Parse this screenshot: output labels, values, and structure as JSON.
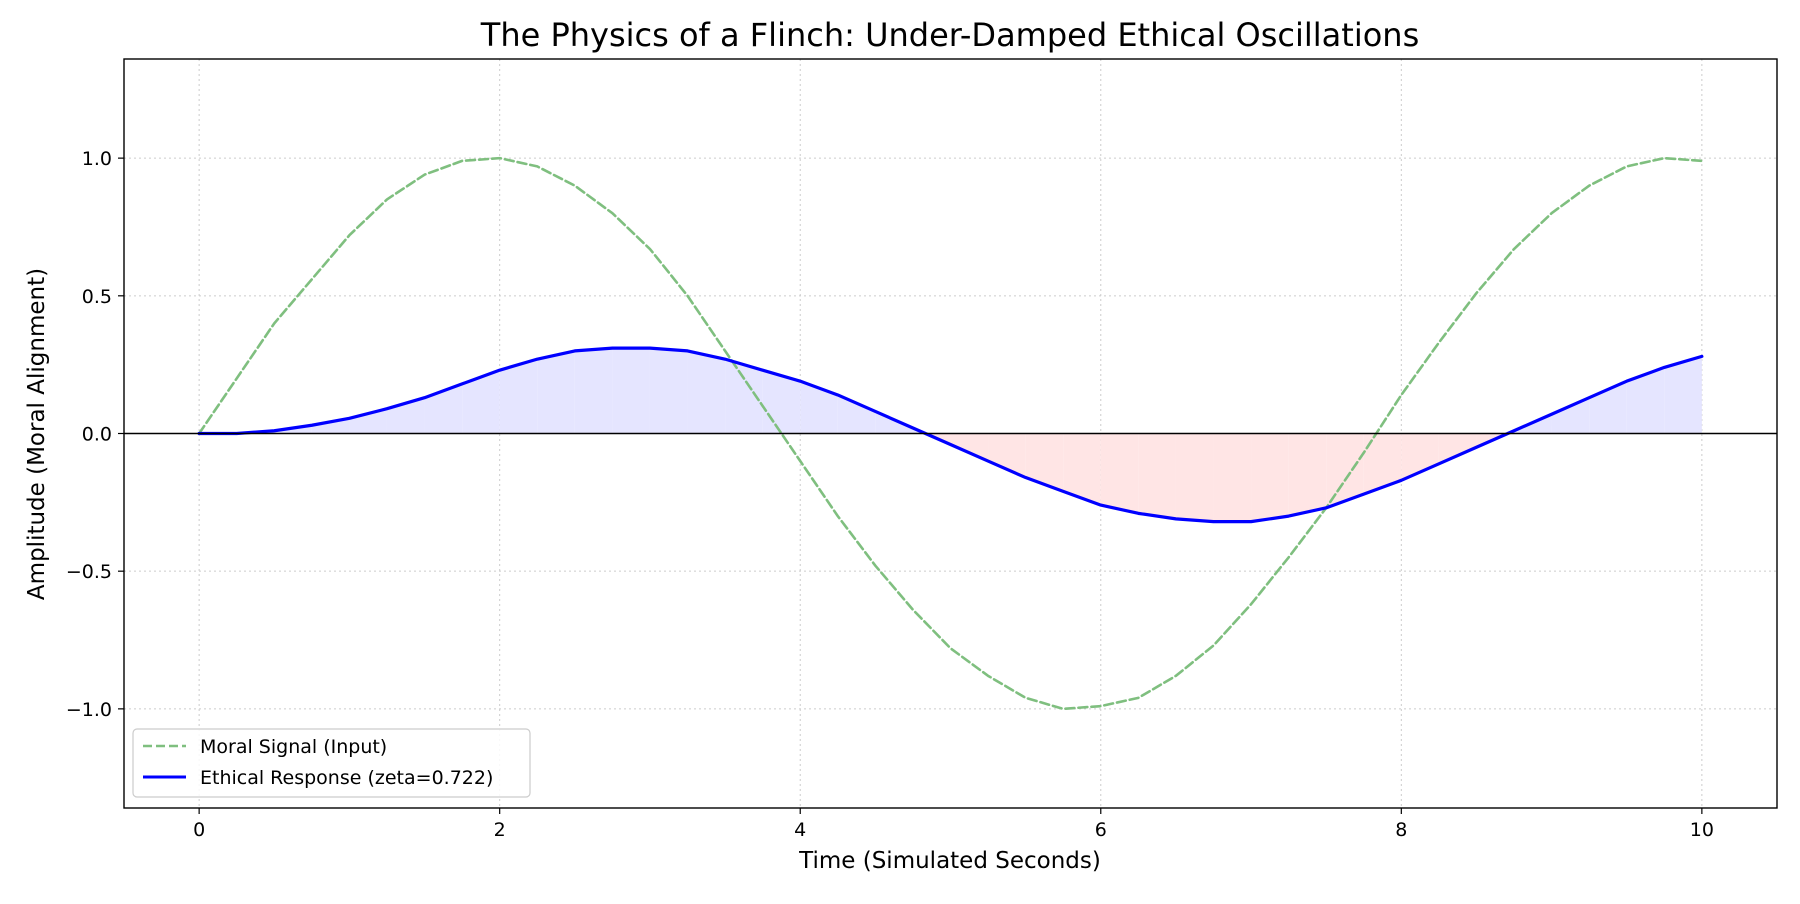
{
  "chart_data": {
    "type": "line",
    "title": "The Physics of a Flinch: Under-Damped Ethical Oscillations",
    "xlabel": "Time (Simulated Seconds)",
    "ylabel": "Amplitude (Moral Alignment)",
    "xlim": [
      -0.5,
      10.5
    ],
    "ylim": [
      -1.36,
      1.36
    ],
    "x_ticks": [
      0,
      2,
      4,
      6,
      8,
      10
    ],
    "x_tick_labels": [
      "0",
      "2",
      "4",
      "6",
      "8",
      "10"
    ],
    "y_ticks": [
      -1.0,
      -0.5,
      0.0,
      0.5,
      1.0
    ],
    "y_tick_labels": [
      "−1.0",
      "−0.5",
      "0.0",
      "0.5",
      "1.0"
    ],
    "grid": true,
    "legend_position": "lower-left",
    "series": [
      {
        "name": "Moral Signal (Input)",
        "style": "dashed",
        "color": "#7fbf7f",
        "x": [
          0.0,
          0.25,
          0.5,
          0.75,
          1.0,
          1.25,
          1.5,
          1.75,
          2.0,
          2.25,
          2.5,
          2.75,
          3.0,
          3.25,
          3.5,
          3.75,
          4.0,
          4.25,
          4.5,
          4.75,
          5.0,
          5.25,
          5.5,
          5.75,
          6.0,
          6.25,
          6.5,
          6.75,
          7.0,
          7.25,
          7.5,
          7.75,
          8.0,
          8.25,
          8.5,
          8.75,
          9.0,
          9.25,
          9.5,
          9.75,
          10.0
        ],
        "values": [
          0.0,
          0.2,
          0.4,
          0.56,
          0.72,
          0.85,
          0.94,
          0.99,
          1.0,
          0.97,
          0.9,
          0.8,
          0.67,
          0.5,
          0.3,
          0.1,
          -0.1,
          -0.3,
          -0.48,
          -0.64,
          -0.78,
          -0.88,
          -0.96,
          -1.0,
          -0.99,
          -0.96,
          -0.88,
          -0.77,
          -0.62,
          -0.45,
          -0.27,
          -0.07,
          0.14,
          0.33,
          0.51,
          0.67,
          0.8,
          0.9,
          0.97,
          1.0,
          0.99
        ]
      },
      {
        "name": "Ethical Response (zeta=0.722)",
        "style": "solid",
        "color": "#0000ff",
        "x": [
          0.0,
          0.25,
          0.5,
          0.75,
          1.0,
          1.25,
          1.5,
          1.75,
          2.0,
          2.25,
          2.5,
          2.75,
          3.0,
          3.25,
          3.5,
          3.75,
          4.0,
          4.25,
          4.5,
          4.75,
          5.0,
          5.25,
          5.5,
          5.75,
          6.0,
          6.25,
          6.5,
          6.75,
          7.0,
          7.25,
          7.5,
          7.75,
          8.0,
          8.25,
          8.5,
          8.75,
          9.0,
          9.25,
          9.5,
          9.75,
          10.0
        ],
        "values": [
          0.0,
          0.0,
          0.01,
          0.03,
          0.055,
          0.09,
          0.13,
          0.18,
          0.23,
          0.27,
          0.3,
          0.31,
          0.31,
          0.3,
          0.27,
          0.23,
          0.19,
          0.14,
          0.08,
          0.02,
          -0.04,
          -0.1,
          -0.16,
          -0.21,
          -0.26,
          -0.29,
          -0.31,
          -0.32,
          -0.32,
          -0.3,
          -0.27,
          -0.22,
          -0.17,
          -0.11,
          -0.05,
          0.01,
          0.07,
          0.13,
          0.19,
          0.24,
          0.28
        ]
      }
    ],
    "fill_positive_color": "#e5e5ff",
    "fill_negative_color": "#ffe5e5",
    "zero_line_color": "#000000"
  }
}
